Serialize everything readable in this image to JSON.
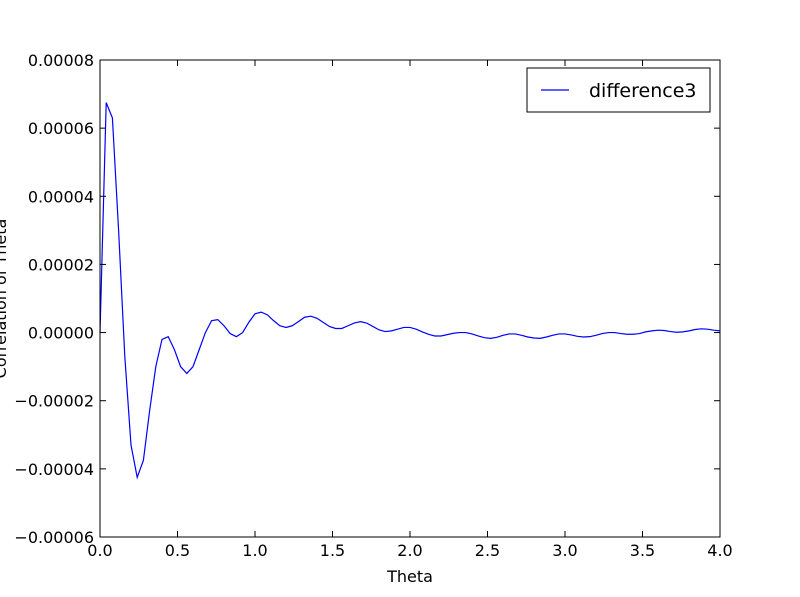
{
  "chart_data": {
    "type": "line",
    "title": "",
    "xlabel": "Theta",
    "ylabel": "Correlation of Theta",
    "xlim": [
      0.0,
      4.0
    ],
    "ylim": [
      -6e-05,
      8e-05
    ],
    "x_ticks": [
      0.0,
      0.5,
      1.0,
      1.5,
      2.0,
      2.5,
      3.0,
      3.5,
      4.0
    ],
    "x_tick_labels": [
      "0.0",
      "0.5",
      "1.0",
      "1.5",
      "2.0",
      "2.5",
      "3.0",
      "3.5",
      "4.0"
    ],
    "y_ticks": [
      -6e-05,
      -4e-05,
      -2e-05,
      0.0,
      2e-05,
      4e-05,
      6e-05,
      8e-05
    ],
    "y_tick_labels": [
      "−0.00006",
      "−0.00004",
      "−0.00002",
      "0.00000",
      "0.00002",
      "0.00004",
      "0.00006",
      "0.00008"
    ],
    "grid": false,
    "legend": {
      "position": "top-right",
      "entries": [
        "difference3"
      ]
    },
    "series": [
      {
        "name": "difference3",
        "color": "#0000ff",
        "x": [
          0.0,
          0.04,
          0.08,
          0.12,
          0.16,
          0.2,
          0.24,
          0.28,
          0.32,
          0.36,
          0.4,
          0.44,
          0.48,
          0.52,
          0.56,
          0.6,
          0.64,
          0.68,
          0.72,
          0.76,
          0.8,
          0.84,
          0.88,
          0.92,
          0.96,
          1.0,
          1.04,
          1.08,
          1.12,
          1.16,
          1.2,
          1.24,
          1.28,
          1.32,
          1.36,
          1.4,
          1.44,
          1.48,
          1.52,
          1.56,
          1.6,
          1.64,
          1.68,
          1.72,
          1.76,
          1.8,
          1.84,
          1.88,
          1.92,
          1.96,
          2.0,
          2.04,
          2.08,
          2.12,
          2.16,
          2.2,
          2.24,
          2.28,
          2.32,
          2.36,
          2.4,
          2.44,
          2.48,
          2.52,
          2.56,
          2.6,
          2.64,
          2.68,
          2.72,
          2.76,
          2.8,
          2.84,
          2.88,
          2.92,
          2.96,
          3.0,
          3.04,
          3.08,
          3.12,
          3.16,
          3.2,
          3.24,
          3.28,
          3.32,
          3.36,
          3.4,
          3.44,
          3.48,
          3.52,
          3.56,
          3.6,
          3.64,
          3.68,
          3.72,
          3.76,
          3.8,
          3.84,
          3.88,
          3.92,
          3.96,
          4.0
        ],
        "y": [
          0.0,
          6.75e-05,
          6.3e-05,
          3e-05,
          -7e-06,
          -3.3e-05,
          -4.25e-05,
          -3.75e-05,
          -2.3e-05,
          -1e-05,
          -2e-06,
          -1.2e-06,
          -5e-06,
          -1e-05,
          -1.2e-05,
          -1e-05,
          -5e-06,
          0.0,
          3.5e-06,
          3.8e-06,
          2e-06,
          -3e-07,
          -1.2e-06,
          0.0,
          3e-06,
          5.5e-06,
          6e-06,
          5.2e-06,
          3.5e-06,
          2e-06,
          1.5e-06,
          2e-06,
          3.2e-06,
          4.5e-06,
          4.8e-06,
          4.2e-06,
          3e-06,
          1.8e-06,
          1.2e-06,
          1.2e-06,
          2e-06,
          2.8e-06,
          3.2e-06,
          2.8e-06,
          1.8e-06,
          8e-07,
          3e-07,
          5e-07,
          1e-06,
          1.5e-06,
          1.5e-06,
          1e-06,
          2e-07,
          -5e-07,
          -1e-06,
          -1e-06,
          -6e-07,
          -2e-07,
          0.0,
          0.0,
          -4e-07,
          -1e-06,
          -1.5e-06,
          -1.7e-06,
          -1.4e-06,
          -8e-07,
          -4e-07,
          -4e-07,
          -8e-07,
          -1.3e-06,
          -1.6e-06,
          -1.7e-06,
          -1.3e-06,
          -8e-07,
          -4e-07,
          -4e-07,
          -7e-07,
          -1.1e-06,
          -1.3e-06,
          -1.2e-06,
          -8e-07,
          -3e-07,
          0.0,
          0.0,
          -3e-07,
          -5e-07,
          -5e-07,
          -3e-07,
          2e-07,
          5e-07,
          7e-07,
          6e-07,
          3e-07,
          1e-07,
          2e-07,
          5e-07,
          9e-07,
          1.1e-06,
          1e-06,
          7e-07,
          5e-07
        ]
      }
    ]
  }
}
